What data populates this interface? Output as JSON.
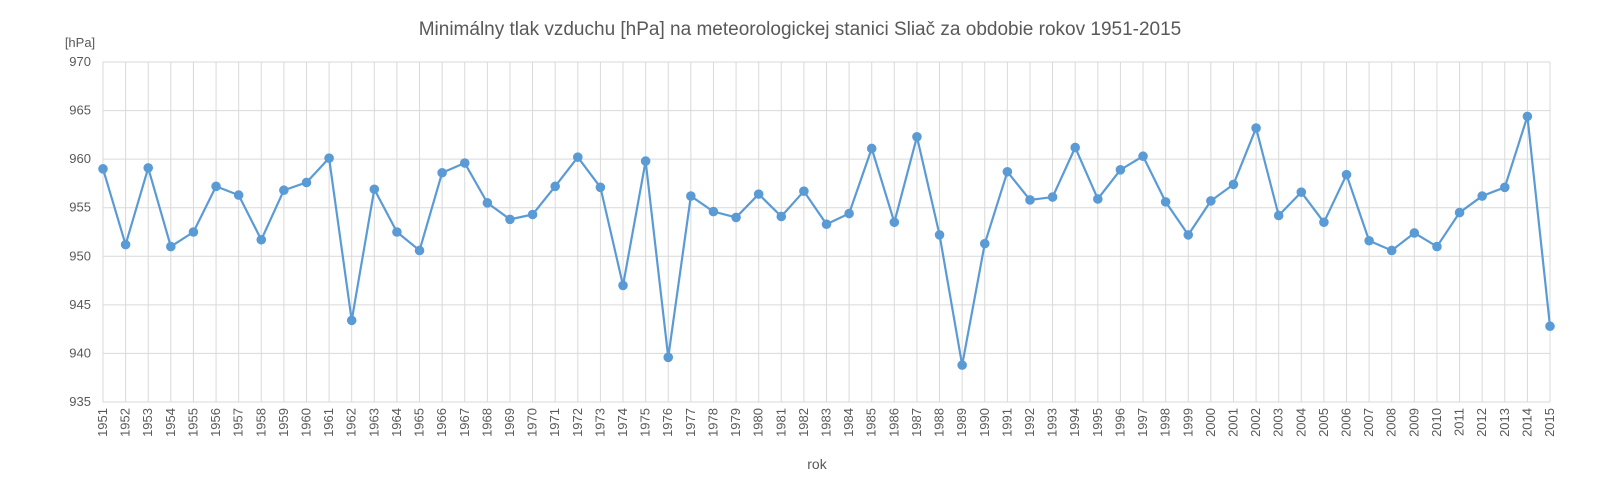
{
  "chart_data": {
    "type": "line",
    "title": "Minimálny tlak vzduchu [hPa] na meteorologickej stanici Sliač za obdobie rokov 1951-2015",
    "ylabel": "[hPa]",
    "xlabel": "rok",
    "ylim": [
      935,
      970
    ],
    "yticks": [
      935,
      940,
      945,
      950,
      955,
      960,
      965,
      970
    ],
    "grid": true,
    "markers": true,
    "line_color": "#5B9BD5",
    "x": [
      "1951",
      "1952",
      "1953",
      "1954",
      "1955",
      "1956",
      "1957",
      "1958",
      "1959",
      "1960",
      "1961",
      "1962",
      "1963",
      "1964",
      "1965",
      "1966",
      "1967",
      "1968",
      "1969",
      "1970",
      "1971",
      "1972",
      "1973",
      "1974",
      "1975",
      "1976",
      "1977",
      "1978",
      "1979",
      "1980",
      "1981",
      "1982",
      "1983",
      "1984",
      "1985",
      "1986",
      "1987",
      "1988",
      "1989",
      "1990",
      "1991",
      "1992",
      "1993",
      "1994",
      "1995",
      "1996",
      "1997",
      "1998",
      "1999",
      "2000",
      "2001",
      "2002",
      "2003",
      "2004",
      "2005",
      "2006",
      "2007",
      "2008",
      "2009",
      "2010",
      "2011",
      "2012",
      "2013",
      "2014",
      "2015"
    ],
    "values": [
      959.0,
      951.2,
      959.1,
      951.0,
      952.5,
      957.2,
      956.3,
      951.7,
      956.8,
      957.6,
      960.1,
      943.4,
      956.9,
      952.5,
      950.6,
      958.6,
      959.6,
      955.5,
      953.8,
      954.3,
      957.2,
      960.2,
      957.1,
      947.0,
      959.8,
      939.6,
      956.2,
      954.6,
      954.0,
      956.4,
      954.1,
      956.7,
      953.3,
      954.4,
      961.1,
      953.5,
      962.3,
      952.2,
      938.8,
      951.3,
      958.7,
      955.8,
      956.1,
      961.2,
      955.9,
      958.9,
      960.3,
      955.6,
      952.2,
      955.7,
      957.4,
      963.2,
      954.2,
      956.6,
      953.5,
      958.4,
      951.6,
      950.6,
      952.4,
      951.0,
      954.5,
      956.2,
      957.1,
      964.4,
      942.8
    ]
  }
}
